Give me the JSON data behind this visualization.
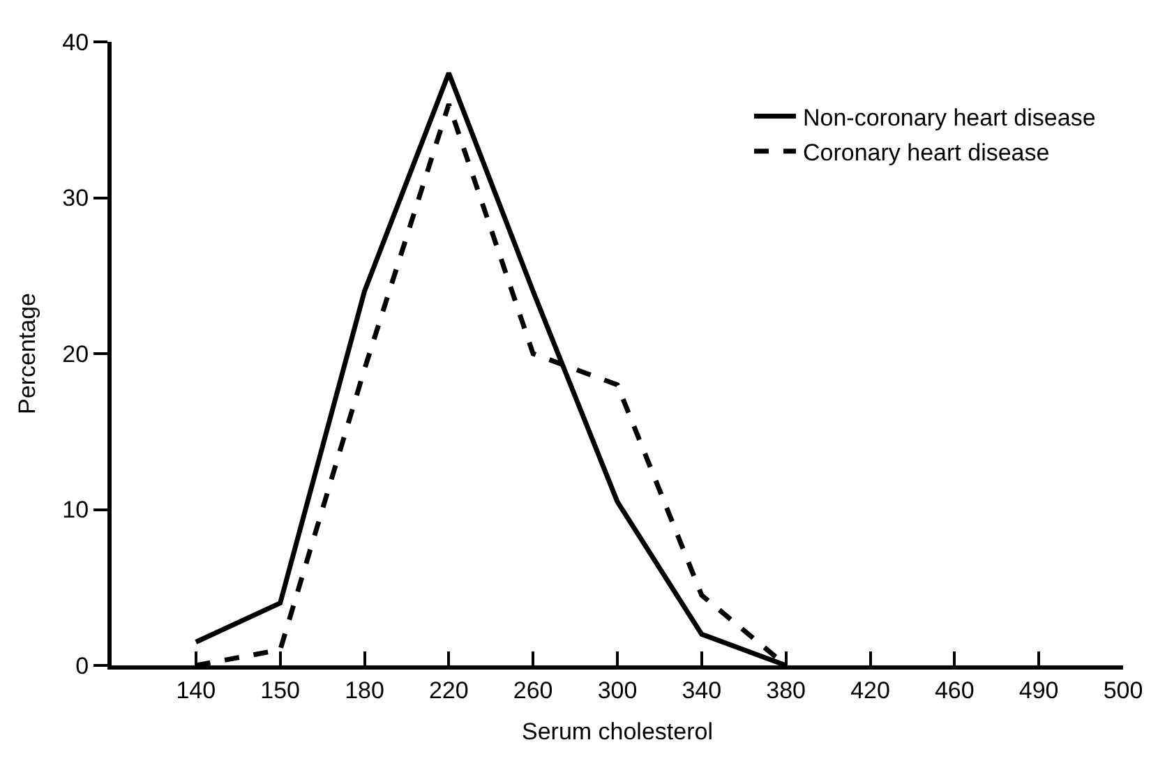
{
  "chart_data": {
    "type": "line",
    "xlabel": "Serum cholesterol",
    "ylabel": "Percentage",
    "categories": [
      "140",
      "150",
      "180",
      "220",
      "260",
      "300",
      "340",
      "380",
      "420",
      "460",
      "490",
      "500"
    ],
    "series": [
      {
        "name": "Non-coronary heart disease",
        "color": "#000000",
        "line_style": "solid",
        "values": [
          1.5,
          4,
          24,
          38,
          24,
          10.5,
          2,
          0,
          null,
          null,
          null,
          null
        ]
      },
      {
        "name": "Coronary heart disease",
        "color": "#000000",
        "line_style": "dashed",
        "values": [
          0,
          1,
          19,
          36,
          20,
          18,
          4.5,
          0,
          null,
          null,
          null,
          null
        ]
      }
    ],
    "ylim": [
      0,
      40
    ],
    "yticks": [
      0,
      10,
      20,
      30,
      40
    ],
    "legend": "top right",
    "marker": "none"
  }
}
